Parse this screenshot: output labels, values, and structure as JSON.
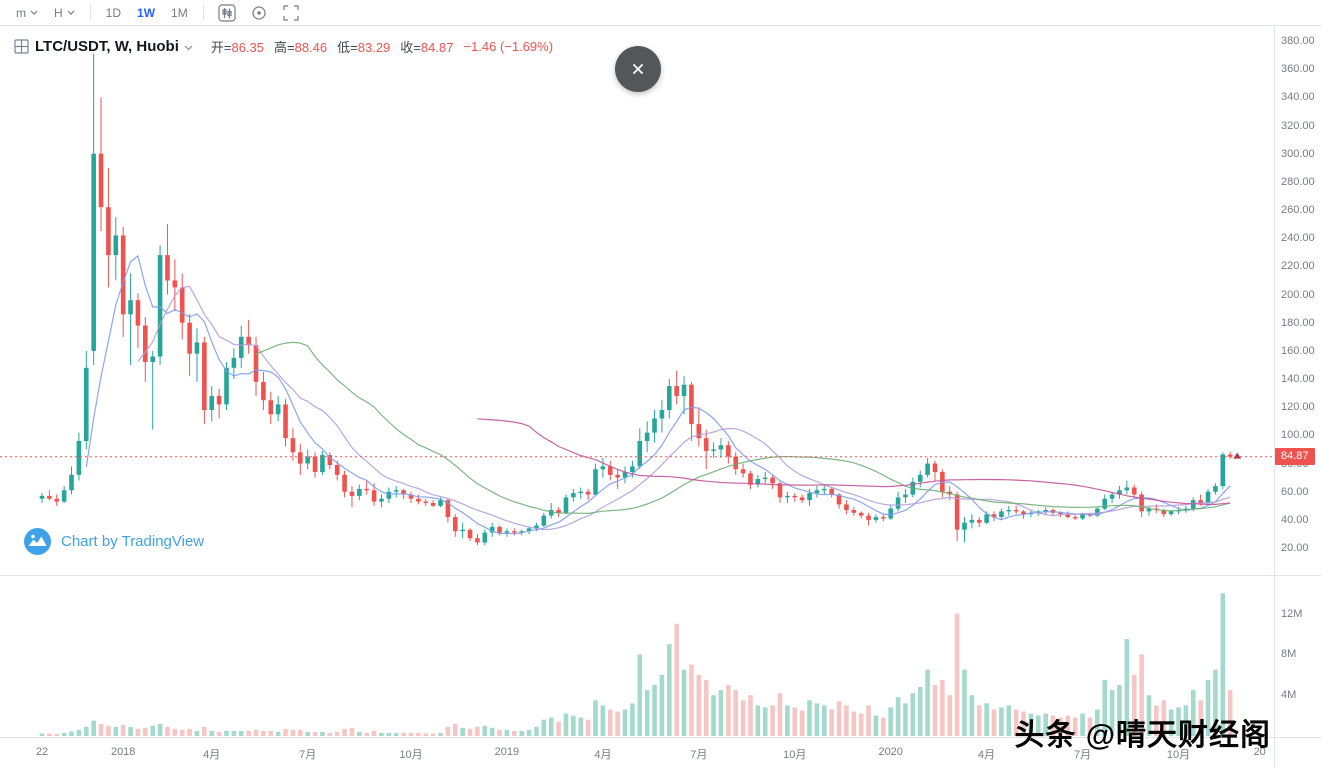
{
  "toolbar": {
    "m_label": "m",
    "h_label": "H",
    "intervals": [
      "1D",
      "1W",
      "1M"
    ],
    "active_interval": "1W",
    "icons": [
      "candlestick-chart-icon",
      "target-icon",
      "fullscreen-icon"
    ]
  },
  "header": {
    "symbol": "LTC/USDT, W, Huobi",
    "open_label": "开=",
    "open": "86.35",
    "high_label": "高=",
    "high": "88.46",
    "low_label": "低=",
    "low": "83.29",
    "close_label": "收=",
    "close": "84.87",
    "change": "−1.46 (−1.69%)"
  },
  "watermarks": {
    "tradingview": "Chart by TradingView",
    "brand": "头条 @晴天财经阁"
  },
  "price_axis": {
    "ticks": [
      "380.00",
      "360.00",
      "340.00",
      "320.00",
      "300.00",
      "280.00",
      "260.00",
      "240.00",
      "220.00",
      "200.00",
      "180.00",
      "160.00",
      "140.00",
      "120.00",
      "100.00",
      "80.00",
      "60.00",
      "40.00",
      "20.00"
    ],
    "last_price": "84.87"
  },
  "volume_axis": {
    "ticks": [
      {
        "label": "12M",
        "value": 12
      },
      {
        "label": "8M",
        "value": 8
      },
      {
        "label": "4M",
        "value": 4
      }
    ]
  },
  "time_axis": {
    "ticks": [
      {
        "label": "22",
        "i": 0
      },
      {
        "label": "2018",
        "i": 11
      },
      {
        "label": "4月",
        "i": 23
      },
      {
        "label": "7月",
        "i": 36
      },
      {
        "label": "10月",
        "i": 50
      },
      {
        "label": "2019",
        "i": 63
      },
      {
        "label": "4月",
        "i": 76
      },
      {
        "label": "7月",
        "i": 89
      },
      {
        "label": "10月",
        "i": 102
      },
      {
        "label": "2020",
        "i": 115
      },
      {
        "label": "4月",
        "i": 128
      },
      {
        "label": "7月",
        "i": 141
      },
      {
        "label": "10月",
        "i": 154
      },
      {
        "label": "20",
        "i": 165
      }
    ]
  },
  "chart_data": {
    "type": "candlestick",
    "symbol": "LTC/USDT",
    "interval": "W",
    "exchange": "Huobi",
    "last": {
      "open": 86.35,
      "high": 88.46,
      "low": 83.29,
      "close": 84.87,
      "change": -1.46,
      "change_pct": -1.69
    },
    "price_axis_range": [
      20,
      380
    ],
    "volume_ticks_m": [
      4,
      8,
      12
    ],
    "mas": [
      {
        "period": 7,
        "color": "#7e9bef"
      },
      {
        "period": 14,
        "color": "#b39ddb"
      },
      {
        "period": 30,
        "color": "#6fae73"
      },
      {
        "period": 60,
        "color": "#c2539b"
      }
    ],
    "colors": {
      "up": "#26a69a",
      "down": "#ef5350",
      "vol_up": "#a3dacb",
      "vol_down": "#f6c6c4",
      "price_line": "#ef5350",
      "accent_blue": "#2962ff"
    },
    "candles": [
      [
        55,
        59,
        52,
        57,
        0.25
      ],
      [
        57,
        61,
        54,
        55,
        0.25
      ],
      [
        55,
        58,
        50,
        53,
        0.2
      ],
      [
        53,
        64,
        52,
        61,
        0.3
      ],
      [
        61,
        78,
        58,
        72,
        0.45
      ],
      [
        72,
        102,
        68,
        96,
        0.6
      ],
      [
        96,
        160,
        90,
        148,
        0.9
      ],
      [
        160,
        371,
        150,
        300,
        1.5
      ],
      [
        300,
        340,
        245,
        262,
        1.2
      ],
      [
        262,
        290,
        205,
        228,
        1.0
      ],
      [
        228,
        255,
        210,
        242,
        0.9
      ],
      [
        242,
        248,
        170,
        186,
        1.1
      ],
      [
        186,
        215,
        150,
        196,
        0.9
      ],
      [
        196,
        201,
        162,
        178,
        0.7
      ],
      [
        178,
        184,
        138,
        152,
        0.8
      ],
      [
        152,
        160,
        104,
        156,
        1.0
      ],
      [
        156,
        235,
        150,
        228,
        1.2
      ],
      [
        228,
        250,
        200,
        210,
        0.9
      ],
      [
        210,
        225,
        188,
        205,
        0.7
      ],
      [
        205,
        215,
        168,
        180,
        0.6
      ],
      [
        180,
        186,
        142,
        158,
        0.7
      ],
      [
        158,
        176,
        138,
        166,
        0.5
      ],
      [
        166,
        170,
        108,
        118,
        0.9
      ],
      [
        118,
        135,
        110,
        128,
        0.5
      ],
      [
        128,
        133,
        112,
        122,
        0.4
      ],
      [
        122,
        152,
        118,
        148,
        0.5
      ],
      [
        148,
        162,
        140,
        155,
        0.5
      ],
      [
        155,
        178,
        148,
        170,
        0.5
      ],
      [
        170,
        182,
        158,
        164,
        0.5
      ],
      [
        164,
        170,
        128,
        138,
        0.6
      ],
      [
        138,
        145,
        118,
        125,
        0.5
      ],
      [
        125,
        131,
        108,
        115,
        0.5
      ],
      [
        115,
        128,
        110,
        122,
        0.4
      ],
      [
        122,
        126,
        92,
        98,
        0.7
      ],
      [
        98,
        105,
        82,
        88,
        0.6
      ],
      [
        88,
        94,
        72,
        80,
        0.6
      ],
      [
        80,
        90,
        76,
        85,
        0.4
      ],
      [
        85,
        88,
        70,
        74,
        0.4
      ],
      [
        74,
        89,
        72,
        86,
        0.4
      ],
      [
        86,
        88,
        76,
        79,
        0.3
      ],
      [
        79,
        82,
        68,
        72,
        0.4
      ],
      [
        72,
        75,
        56,
        60,
        0.7
      ],
      [
        60,
        64,
        49,
        57,
        0.8
      ],
      [
        57,
        65,
        54,
        62,
        0.4
      ],
      [
        62,
        68,
        58,
        61,
        0.3
      ],
      [
        61,
        66,
        50,
        53,
        0.5
      ],
      [
        53,
        58,
        49,
        55,
        0.3
      ],
      [
        55,
        63,
        52,
        60,
        0.3
      ],
      [
        60,
        64,
        56,
        61,
        0.3
      ],
      [
        61,
        62,
        55,
        58,
        0.3
      ],
      [
        58,
        60,
        52,
        55,
        0.3
      ],
      [
        55,
        58,
        51,
        53,
        0.3
      ],
      [
        53,
        55,
        50,
        52,
        0.25
      ],
      [
        52,
        54,
        49,
        50,
        0.25
      ],
      [
        50,
        56,
        49,
        54,
        0.3
      ],
      [
        54,
        55,
        38,
        42,
        0.9
      ],
      [
        42,
        44,
        28,
        32,
        1.2
      ],
      [
        32,
        38,
        27,
        33,
        0.8
      ],
      [
        33,
        34,
        25,
        27,
        0.7
      ],
      [
        27,
        30,
        22,
        24,
        0.9
      ],
      [
        24,
        33,
        22,
        31,
        1.0
      ],
      [
        31,
        38,
        28,
        35,
        0.8
      ],
      [
        35,
        36,
        29,
        31,
        0.6
      ],
      [
        31,
        34,
        28,
        32,
        0.6
      ],
      [
        32,
        34,
        29,
        31,
        0.5
      ],
      [
        31,
        33,
        29,
        32,
        0.5
      ],
      [
        32,
        35,
        30,
        34,
        0.6
      ],
      [
        34,
        38,
        32,
        36,
        0.9
      ],
      [
        36,
        45,
        35,
        43,
        1.6
      ],
      [
        43,
        52,
        41,
        47,
        1.8
      ],
      [
        47,
        49,
        42,
        45,
        1.4
      ],
      [
        45,
        58,
        44,
        56,
        2.2
      ],
      [
        56,
        62,
        53,
        59,
        2.0
      ],
      [
        59,
        63,
        55,
        60,
        1.8
      ],
      [
        60,
        62,
        54,
        58,
        1.6
      ],
      [
        58,
        80,
        57,
        76,
        3.5
      ],
      [
        76,
        84,
        70,
        78,
        3.0
      ],
      [
        78,
        82,
        68,
        72,
        2.6
      ],
      [
        72,
        76,
        62,
        70,
        2.4
      ],
      [
        70,
        78,
        66,
        74,
        2.6
      ],
      [
        74,
        82,
        70,
        78,
        3.2
      ],
      [
        78,
        105,
        76,
        96,
        8.0
      ],
      [
        96,
        110,
        88,
        102,
        4.5
      ],
      [
        102,
        118,
        95,
        112,
        5.0
      ],
      [
        112,
        125,
        102,
        118,
        6.0
      ],
      [
        118,
        140,
        112,
        135,
        9.0
      ],
      [
        135,
        146,
        122,
        128,
        11.0
      ],
      [
        128,
        142,
        115,
        136,
        6.5
      ],
      [
        136,
        138,
        96,
        108,
        7.0
      ],
      [
        108,
        120,
        92,
        98,
        6.0
      ],
      [
        98,
        104,
        76,
        89,
        5.5
      ],
      [
        89,
        95,
        84,
        90,
        4.0
      ],
      [
        90,
        98,
        84,
        93,
        4.5
      ],
      [
        93,
        96,
        80,
        85,
        5.0
      ],
      [
        85,
        88,
        72,
        76,
        4.5
      ],
      [
        76,
        80,
        70,
        73,
        3.5
      ],
      [
        73,
        75,
        62,
        65,
        4.0
      ],
      [
        65,
        72,
        63,
        69,
        3.0
      ],
      [
        69,
        74,
        66,
        70,
        2.8
      ],
      [
        70,
        72,
        62,
        66,
        3.0
      ],
      [
        66,
        67,
        52,
        56,
        4.2
      ],
      [
        56,
        60,
        52,
        57,
        3.0
      ],
      [
        57,
        59,
        53,
        56,
        2.8
      ],
      [
        56,
        58,
        52,
        54,
        2.5
      ],
      [
        54,
        62,
        50,
        59,
        3.5
      ],
      [
        59,
        64,
        56,
        61,
        3.2
      ],
      [
        61,
        65,
        58,
        62,
        3.0
      ],
      [
        62,
        63,
        56,
        58,
        2.6
      ],
      [
        58,
        59,
        48,
        51,
        3.4
      ],
      [
        51,
        54,
        44,
        47,
        3.0
      ],
      [
        47,
        49,
        43,
        45,
        2.4
      ],
      [
        45,
        46,
        41,
        43,
        2.2
      ],
      [
        43,
        45,
        36,
        40,
        3.0
      ],
      [
        40,
        44,
        38,
        42,
        2.0
      ],
      [
        42,
        44,
        39,
        41,
        1.8
      ],
      [
        41,
        51,
        40,
        48,
        2.8
      ],
      [
        48,
        60,
        46,
        56,
        3.8
      ],
      [
        56,
        62,
        52,
        58,
        3.2
      ],
      [
        58,
        70,
        56,
        67,
        4.2
      ],
      [
        67,
        75,
        63,
        72,
        4.8
      ],
      [
        72,
        84,
        70,
        80,
        6.5
      ],
      [
        80,
        82,
        68,
        74,
        5.0
      ],
      [
        74,
        76,
        56,
        60,
        5.5
      ],
      [
        60,
        64,
        54,
        58,
        4.0
      ],
      [
        58,
        60,
        25,
        33,
        12.0
      ],
      [
        33,
        42,
        24,
        38,
        6.5
      ],
      [
        38,
        44,
        34,
        40,
        4.0
      ],
      [
        40,
        42,
        35,
        38,
        3.0
      ],
      [
        38,
        46,
        37,
        44,
        3.2
      ],
      [
        44,
        46,
        39,
        42,
        2.6
      ],
      [
        42,
        48,
        40,
        46,
        2.8
      ],
      [
        46,
        50,
        43,
        47,
        3.0
      ],
      [
        47,
        50,
        44,
        46,
        2.6
      ],
      [
        46,
        47,
        41,
        44,
        2.4
      ],
      [
        44,
        47,
        42,
        45,
        2.2
      ],
      [
        45,
        47,
        43,
        46,
        2.0
      ],
      [
        46,
        49,
        44,
        47,
        2.2
      ],
      [
        47,
        48,
        43,
        45,
        2.0
      ],
      [
        45,
        46,
        42,
        44,
        1.8
      ],
      [
        44,
        46,
        41,
        42,
        2.0
      ],
      [
        42,
        44,
        40,
        41,
        1.8
      ],
      [
        41,
        45,
        40,
        44,
        2.2
      ],
      [
        44,
        45,
        42,
        43,
        1.8
      ],
      [
        43,
        49,
        42,
        48,
        2.6
      ],
      [
        48,
        58,
        47,
        55,
        5.5
      ],
      [
        55,
        60,
        52,
        58,
        4.5
      ],
      [
        58,
        64,
        55,
        61,
        5.0
      ],
      [
        61,
        68,
        58,
        63,
        9.5
      ],
      [
        63,
        65,
        56,
        58,
        6.0
      ],
      [
        58,
        60,
        42,
        46,
        8.0
      ],
      [
        46,
        50,
        43,
        48,
        4.0
      ],
      [
        48,
        51,
        45,
        47,
        3.0
      ],
      [
        47,
        48,
        42,
        44,
        3.5
      ],
      [
        44,
        47,
        43,
        46,
        2.6
      ],
      [
        46,
        49,
        44,
        47,
        2.8
      ],
      [
        47,
        50,
        45,
        48,
        3.0
      ],
      [
        48,
        56,
        46,
        54,
        4.5
      ],
      [
        54,
        58,
        50,
        52,
        3.5
      ],
      [
        52,
        62,
        50,
        60,
        5.5
      ],
      [
        60,
        66,
        58,
        64,
        6.5
      ],
      [
        64,
        88,
        62,
        86.5,
        14.0
      ],
      [
        86.35,
        88.46,
        83.29,
        84.87,
        4.5
      ]
    ]
  }
}
